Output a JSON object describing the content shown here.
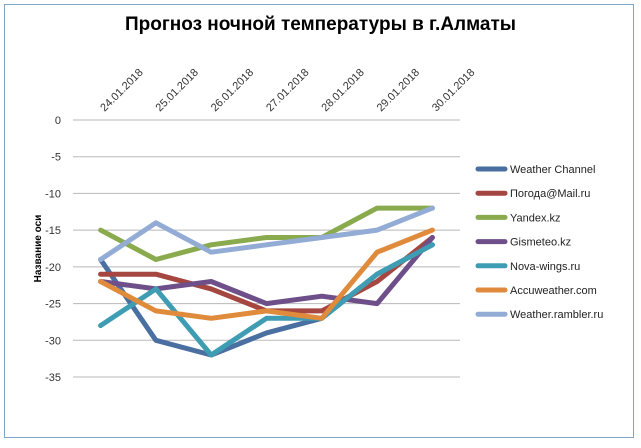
{
  "chart_data": {
    "type": "line",
    "title": "Прогноз ночной температуры в г.Алматы",
    "xlabel": "",
    "ylabel": "Название оси",
    "categories": [
      "24.01.2018",
      "25.01.2018",
      "26.01.2018",
      "27.01.2018",
      "28.01.2018",
      "29.01.2018",
      "30.01.2018"
    ],
    "ylim": [
      -35,
      0
    ],
    "yticks": [
      0,
      -5,
      -10,
      -15,
      -20,
      -25,
      -30,
      -35
    ],
    "grid": true,
    "legend_position": "right",
    "series": [
      {
        "name": "Weather Channel",
        "color": "#4a6fa1",
        "values": [
          -19,
          -30,
          -32,
          -29,
          -27,
          -21,
          -17
        ]
      },
      {
        "name": "Погода@Mail.ru",
        "color": "#a64640",
        "values": [
          -21,
          -21,
          -23,
          -26,
          -26,
          -22,
          -16
        ]
      },
      {
        "name": "Yandex.kz",
        "color": "#8aaa4e",
        "values": [
          -15,
          -19,
          -17,
          -16,
          -16,
          -12,
          -12
        ]
      },
      {
        "name": "Gismeteo.kz",
        "color": "#6e4f8a",
        "values": [
          -22,
          -23,
          -22,
          -25,
          -24,
          -25,
          -16
        ]
      },
      {
        "name": "Nova-wings.ru",
        "color": "#3f9db3",
        "values": [
          -28,
          -23,
          -32,
          -27,
          -27,
          -21,
          -17
        ]
      },
      {
        "name": "Accuweather.com",
        "color": "#e08a3c",
        "values": [
          -22,
          -26,
          -27,
          -26,
          -27,
          -18,
          -15
        ]
      },
      {
        "name": "Weather.rambler.ru",
        "color": "#93acd6",
        "values": [
          -19,
          -14,
          -18,
          -17,
          -16,
          -15,
          -12
        ]
      }
    ]
  }
}
